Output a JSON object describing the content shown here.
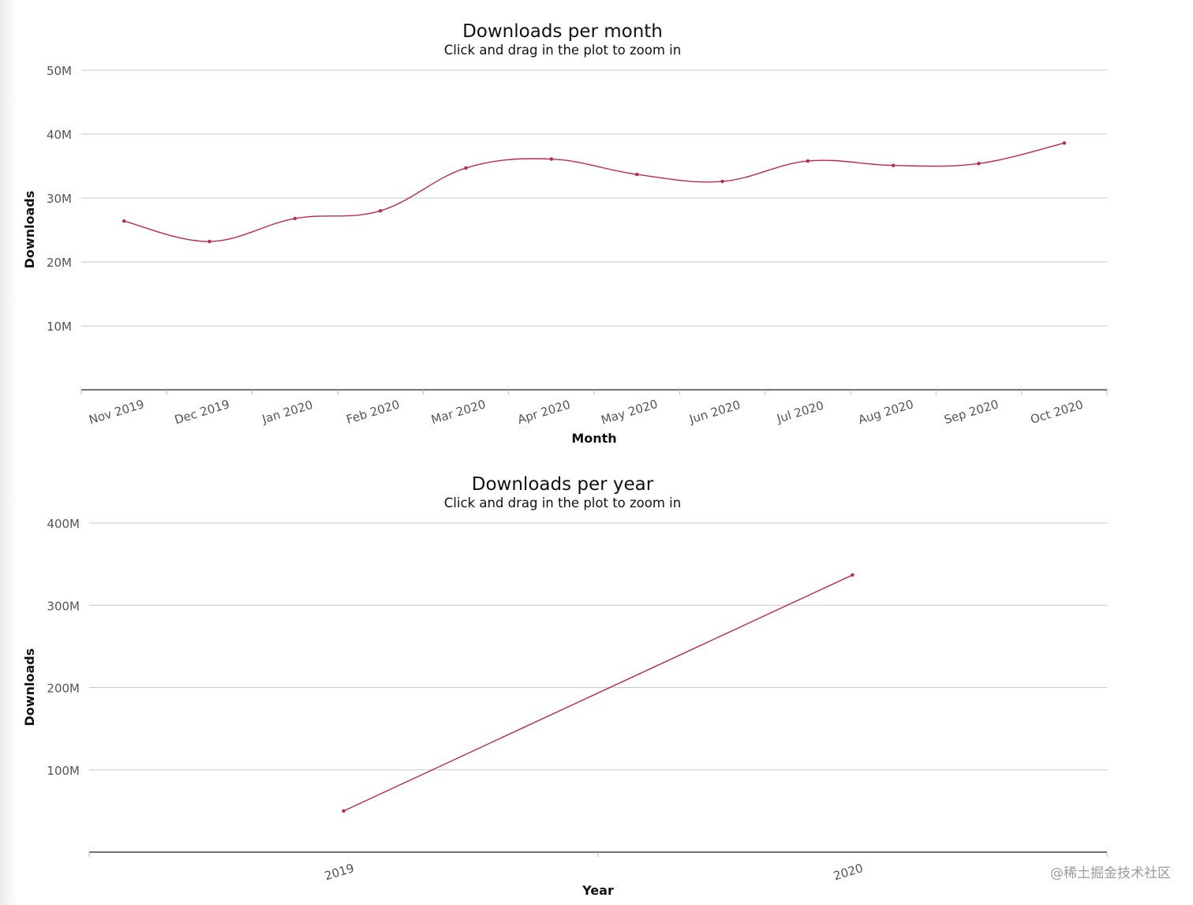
{
  "chart_data": [
    {
      "type": "line",
      "title": "Downloads per month",
      "subtitle": "Click and drag in the plot to zoom in",
      "xlabel": "Month",
      "ylabel": "Downloads",
      "categories": [
        "Nov 2019",
        "Dec 2019",
        "Jan 2020",
        "Feb 2020",
        "Mar 2020",
        "Apr 2020",
        "May 2020",
        "Jun 2020",
        "Jul 2020",
        "Aug 2020",
        "Sep 2020",
        "Oct 2020"
      ],
      "series": [
        {
          "values": [
            26400000,
            23200000,
            26800000,
            28000000,
            34700000,
            36100000,
            33700000,
            32600000,
            35800000,
            35100000,
            35400000,
            38600000
          ],
          "color": "#c0284a"
        }
      ],
      "ylim": [
        0,
        50000000
      ],
      "yticks": [
        10000000,
        20000000,
        30000000,
        40000000,
        50000000
      ],
      "ytick_labels": [
        "10M",
        "20M",
        "30M",
        "40M",
        "50M"
      ],
      "grid": true,
      "smooth": true
    },
    {
      "type": "line",
      "title": "Downloads per year",
      "subtitle": "Click and drag in the plot to zoom in",
      "xlabel": "Year",
      "ylabel": "Downloads",
      "categories": [
        "2019",
        "2020"
      ],
      "series": [
        {
          "values": [
            50000000,
            337000000
          ],
          "color": "#c0284a"
        }
      ],
      "ylim": [
        0,
        400000000
      ],
      "yticks": [
        100000000,
        200000000,
        300000000,
        400000000
      ],
      "ytick_labels": [
        "100M",
        "200M",
        "300M",
        "400M"
      ],
      "grid": true,
      "smooth": false
    }
  ],
  "watermark": "@稀土掘金技术社区"
}
